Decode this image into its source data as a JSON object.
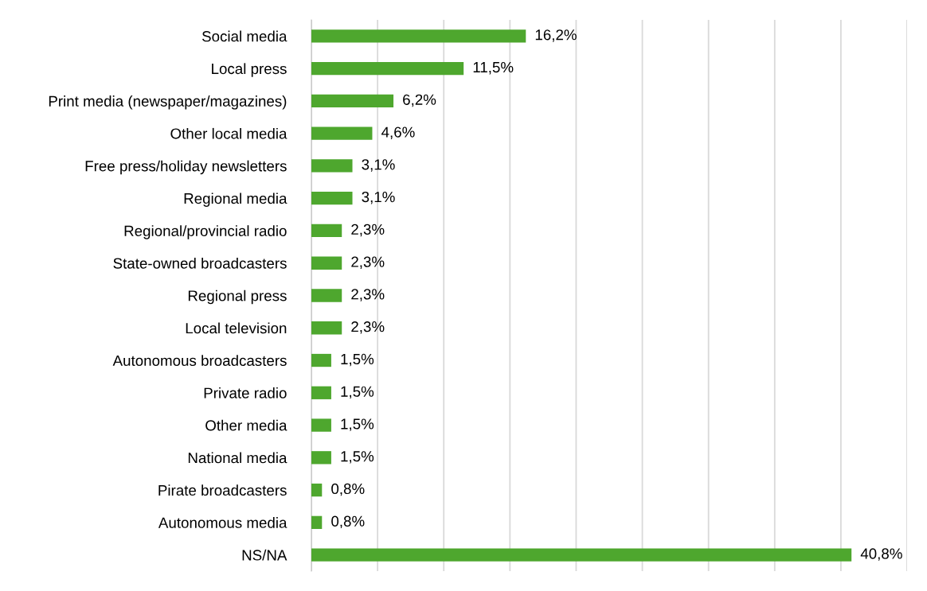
{
  "chart_data": {
    "type": "bar",
    "orientation": "horizontal",
    "categories": [
      "Social media",
      "Local press",
      "Print media (newspaper/magazines)",
      "Other local media",
      "Free press/holiday newsletters",
      "Regional media",
      "Regional/provincial radio",
      "State-owned broadcasters",
      "Regional press",
      "Local television",
      "Autonomous broadcasters",
      "Private radio",
      "Other media",
      "National media",
      "Pirate broadcasters",
      "Autonomous media",
      "NS/NA"
    ],
    "values": [
      16.2,
      11.5,
      6.2,
      4.6,
      3.1,
      3.1,
      2.3,
      2.3,
      2.3,
      2.3,
      1.5,
      1.5,
      1.5,
      1.5,
      0.8,
      0.8,
      40.8
    ],
    "value_labels": [
      "16,2%",
      "11,5%",
      "6,2%",
      "4,6%",
      "3,1%",
      "3,1%",
      "2,3%",
      "2,3%",
      "2,3%",
      "2,3%",
      "1,5%",
      "1,5%",
      "1,5%",
      "1,5%",
      "0,8%",
      "0,8%",
      "40,8%"
    ],
    "color": "#4ea72e",
    "xlim": [
      0,
      45
    ],
    "xticks": [
      {
        "value": 0,
        "label": null
      },
      {
        "value": 5,
        "label": null
      },
      {
        "value": 10,
        "label": null
      },
      {
        "value": 15,
        "label": null
      },
      {
        "value": 20,
        "label": null
      },
      {
        "value": 25,
        "label": null
      },
      {
        "value": 30,
        "label": null
      },
      {
        "value": 35,
        "label": null
      },
      {
        "value": 40,
        "label": null
      },
      {
        "value": 45,
        "label": null
      }
    ],
    "grid": "x",
    "tick_labels": "y"
  }
}
